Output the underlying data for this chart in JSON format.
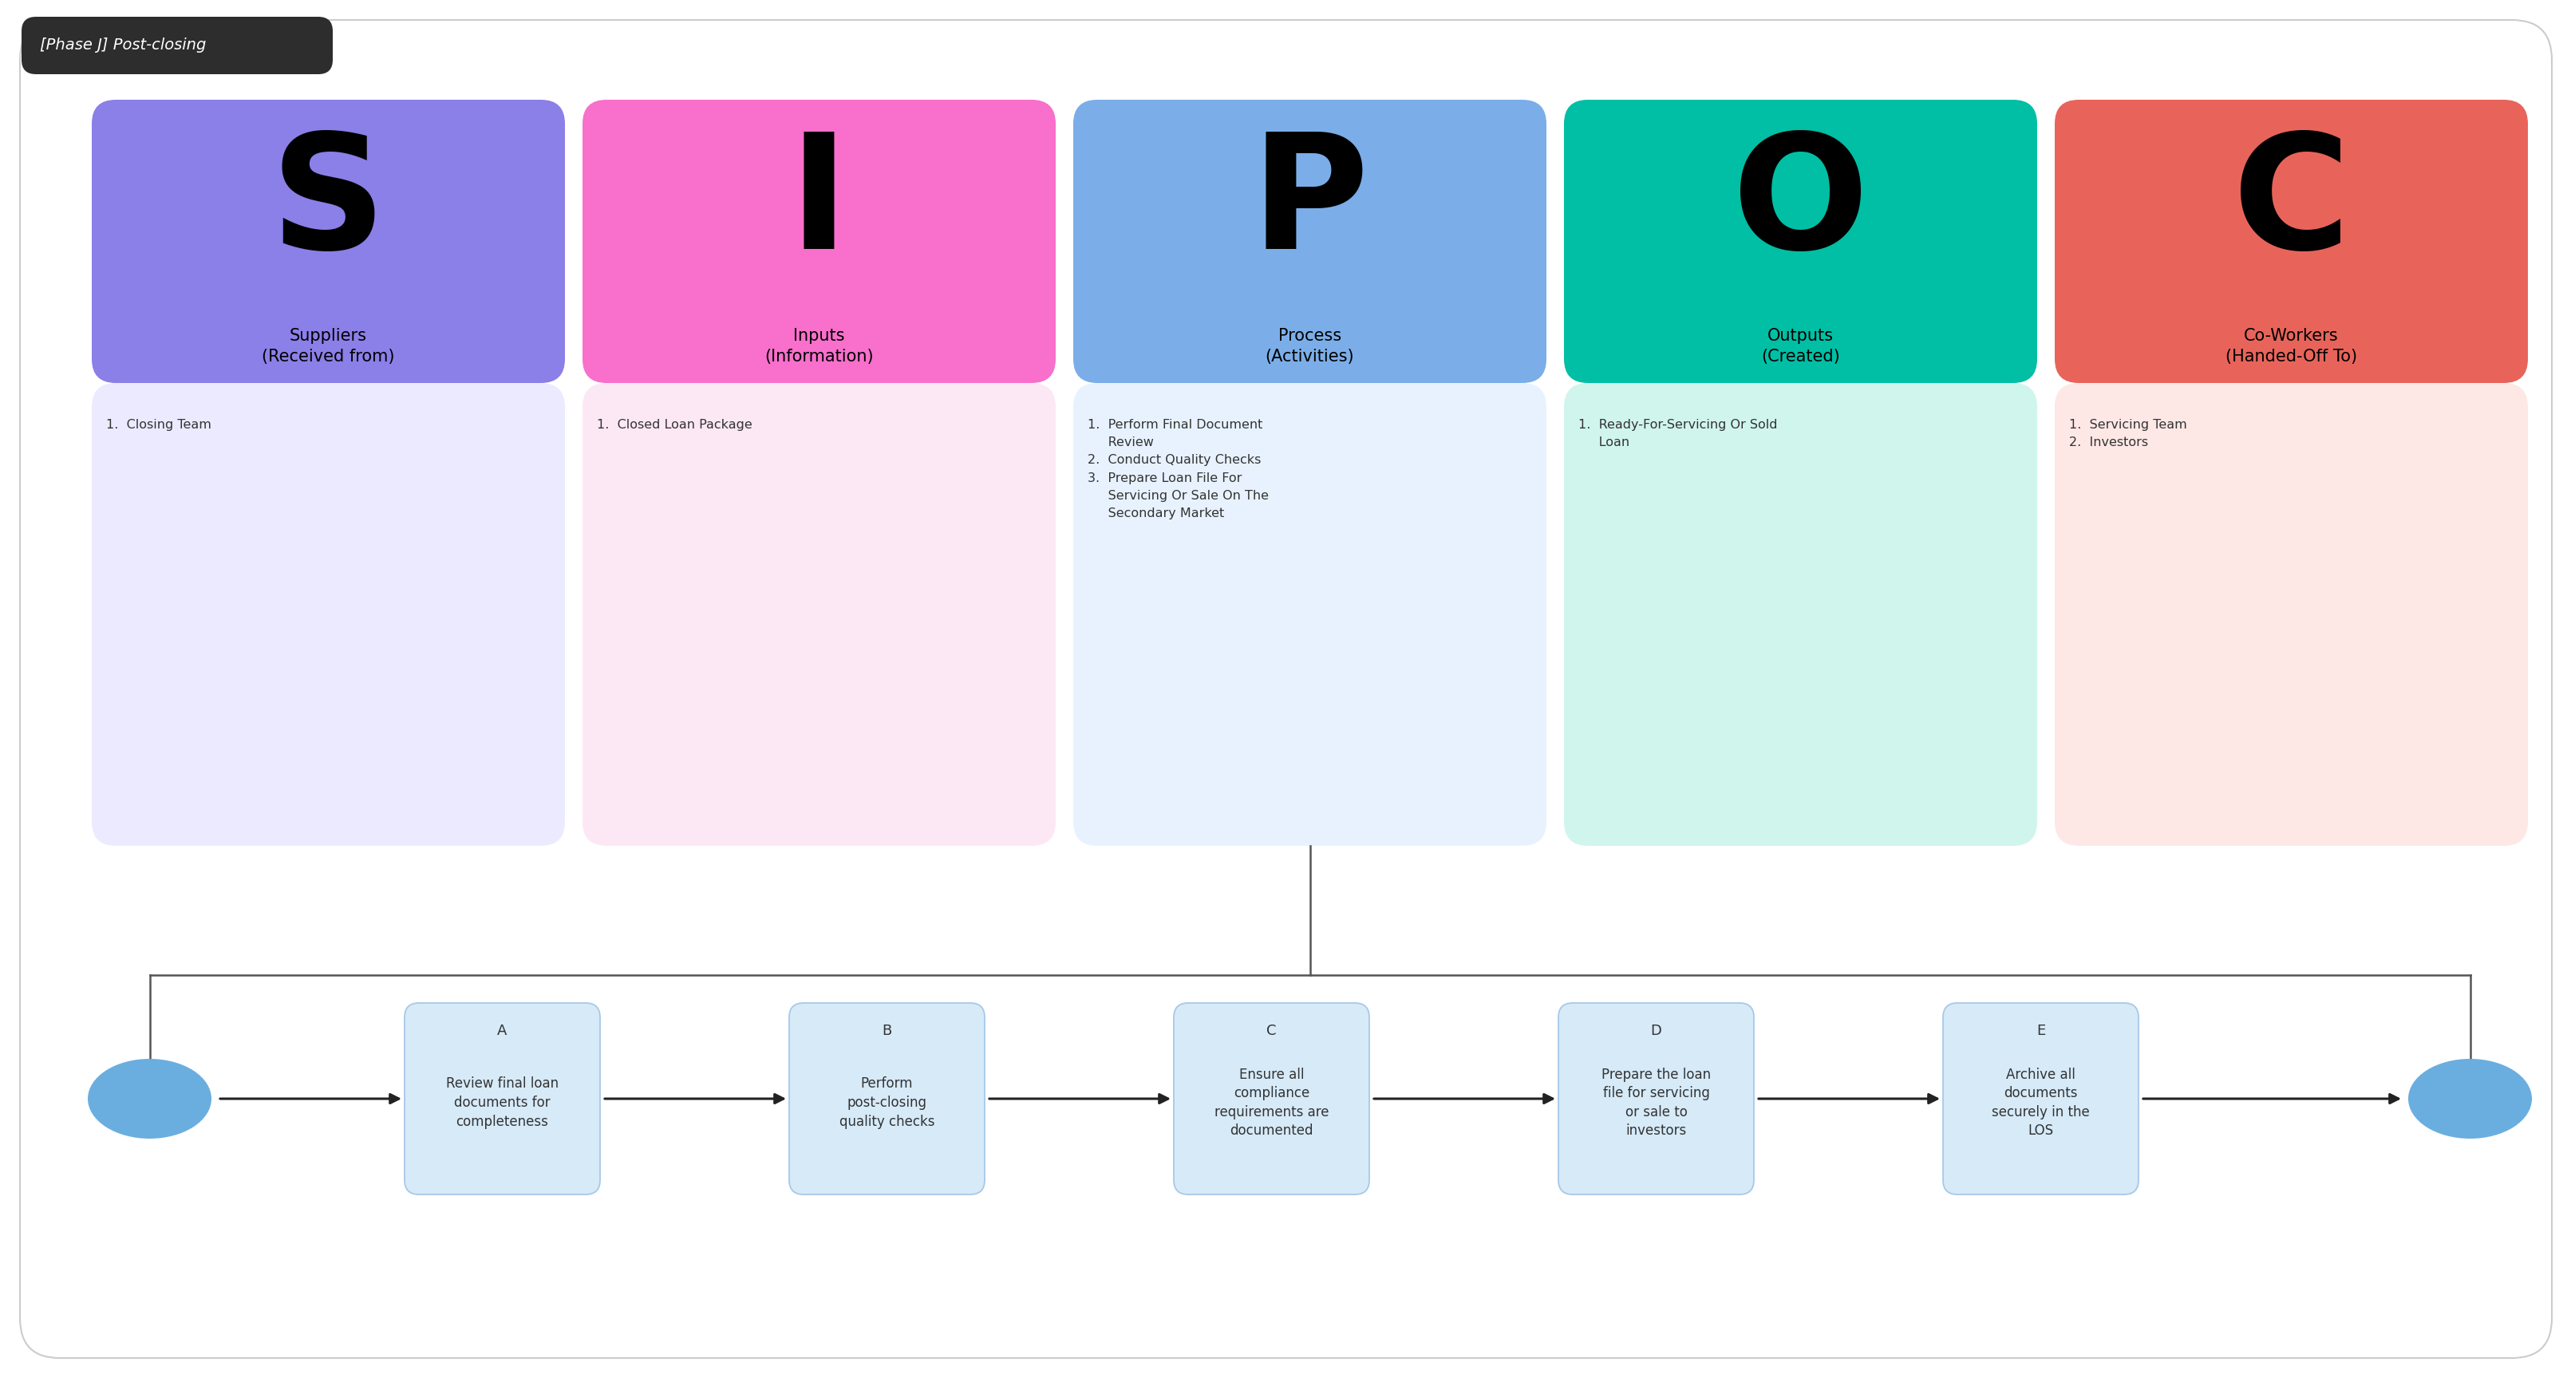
{
  "title": "[Phase J] Post-closing",
  "bg_color": "#ffffff",
  "sipoc_columns": [
    {
      "letter": "S",
      "header": "Suppliers\n(Received from)",
      "header_bg": "#8b7fe8",
      "content_bg": "#eceaff",
      "items": "1.  Closing Team"
    },
    {
      "letter": "I",
      "header": "Inputs\n(Information)",
      "header_bg": "#f86fcc",
      "content_bg": "#fce8f5",
      "items": "1.  Closed Loan Package"
    },
    {
      "letter": "P",
      "header": "Process\n(Activities)",
      "header_bg": "#7baee8",
      "content_bg": "#e8f2ff",
      "items": "1.  Perform Final Document\n     Review\n2.  Conduct Quality Checks\n3.  Prepare Loan File For\n     Servicing Or Sale On The\n     Secondary Market"
    },
    {
      "letter": "O",
      "header": "Outputs\n(Created)",
      "header_bg": "#00bfa5",
      "content_bg": "#d0f5ed",
      "items": "1.  Ready-For-Servicing Or Sold\n     Loan"
    },
    {
      "letter": "C",
      "header": "Co-Workers\n(Handed-Off To)",
      "header_bg": "#e8645a",
      "content_bg": "#fde8e6",
      "items": "1.  Servicing Team\n2.  Investors"
    }
  ],
  "flow_steps": [
    {
      "label": "A",
      "text": "Review final loan\ndocuments for\ncompleteness"
    },
    {
      "label": "B",
      "text": "Perform\npost-closing\nquality checks"
    },
    {
      "label": "C",
      "text": "Ensure all\ncompliance\nrequirements are\ndocumented"
    },
    {
      "label": "D",
      "text": "Prepare the loan\nfile for servicing\nor sale to\ninvestors"
    },
    {
      "label": "E",
      "text": "Archive all\ndocuments\nsecurely in the\nLOS"
    }
  ],
  "flow_box_color": "#d6eaf8",
  "flow_box_border": "#a8c8e8",
  "flow_oval_color": "#6aaee0",
  "arrow_color": "#222222",
  "connector_color": "#555555"
}
